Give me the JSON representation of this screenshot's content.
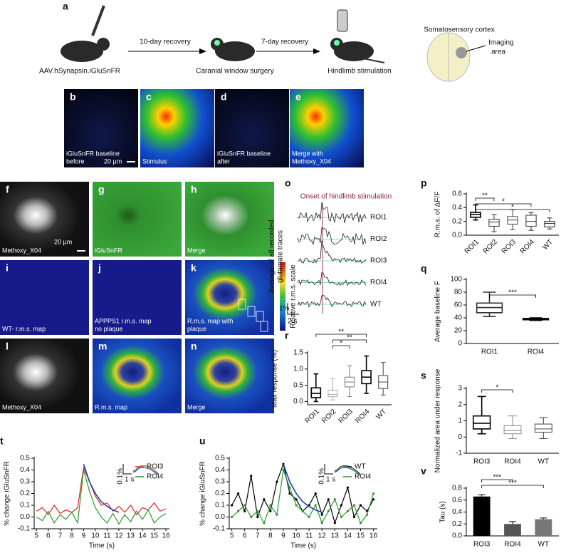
{
  "diagram": {
    "letter": "a",
    "steps": [
      "AAV.hSynapsin.iGluSnFR",
      "Caranial window surgery",
      "Hindlimb stimulation"
    ],
    "arrows": [
      "10-day recovery",
      "7-day recovery"
    ],
    "brain": {
      "title": "Somatosensory cortex",
      "label": [
        "Imaging",
        "area"
      ]
    }
  },
  "images": [
    {
      "letter": "b",
      "caption": [
        "iGluSnFR baseline",
        "before"
      ],
      "scale": "20 µm"
    },
    {
      "letter": "c",
      "caption": [
        "Stimulus"
      ]
    },
    {
      "letter": "d",
      "caption": [
        "iGluSnFR baseline",
        "after"
      ]
    },
    {
      "letter": "e",
      "caption": [
        "Merge with",
        "Methoxy_X04"
      ]
    },
    {
      "letter": "f",
      "caption": [
        "Methoxy_X04"
      ],
      "scale": "20 µm"
    },
    {
      "letter": "g",
      "caption": [
        "iGluSnFR"
      ]
    },
    {
      "letter": "h",
      "caption": [
        "Merge"
      ]
    },
    {
      "letter": "i",
      "caption": [
        "WT- r.m.s. map"
      ]
    },
    {
      "letter": "j",
      "caption": [
        "APPPS1 r.m.s. map",
        "no plaque"
      ]
    },
    {
      "letter": "k",
      "caption": [
        "R.m.s. map with",
        "plaque"
      ]
    },
    {
      "letter": "l",
      "caption": [
        "Methoxy_X04"
      ]
    },
    {
      "letter": "m",
      "caption": [
        "R.m.s. map"
      ]
    },
    {
      "letter": "n",
      "caption": [
        "Merge"
      ]
    }
  ],
  "colorbar_label": "Relative r.m.s. scale",
  "traces": {
    "letter": "o",
    "title": "Onset of hindlimb stimulation",
    "ylabel": [
      "Average of all recorded",
      "glutamate traces"
    ],
    "labels": [
      "ROI1",
      "ROI2",
      "ROI3",
      "ROI4",
      "WT"
    ],
    "scale": [
      "1%",
      "2 s"
    ]
  },
  "chart_data": [
    {
      "panel": "p",
      "type": "box",
      "ylabel": "R.m.s. of ΔF/F",
      "rotate_labels": true,
      "categories": [
        "ROI1",
        "ROI2",
        "ROI3",
        "ROI4",
        "WT"
      ],
      "colors": [
        "#000000",
        "#333333",
        "#444444",
        "#333333",
        "#222222"
      ],
      "stats": [
        {
          "min": 0.22,
          "q1": 0.26,
          "median": 0.3,
          "q3": 0.33,
          "max": 0.44
        },
        {
          "min": 0.05,
          "q1": 0.13,
          "median": 0.19,
          "q3": 0.23,
          "max": 0.3
        },
        {
          "min": 0.08,
          "q1": 0.16,
          "median": 0.22,
          "q3": 0.27,
          "max": 0.37
        },
        {
          "min": 0.07,
          "q1": 0.13,
          "median": 0.2,
          "q3": 0.29,
          "max": 0.33
        },
        {
          "min": 0.09,
          "q1": 0.12,
          "median": 0.17,
          "q3": 0.2,
          "max": 0.25
        }
      ],
      "ylim": [
        0,
        0.6
      ],
      "yticks": [
        {
          "value": 0,
          "label": "0.0"
        },
        {
          "value": 0.2,
          "label": "0.2"
        },
        {
          "value": 0.4,
          "label": "0.4"
        },
        {
          "value": 0.6,
          "label": "0.6"
        }
      ],
      "annotations": [
        {
          "text": "**",
          "between": [
            "ROI1",
            "ROI2"
          ]
        },
        {
          "text": "*",
          "between": [
            "ROI1",
            "ROI4"
          ]
        },
        {
          "text": "*",
          "between": [
            "ROI1",
            "WT"
          ]
        }
      ]
    },
    {
      "panel": "q",
      "type": "box",
      "ylabel": "Average baseline F",
      "rotate_labels": false,
      "categories": [
        "ROI1",
        "ROI4"
      ],
      "colors": [
        "#333333",
        "#000000"
      ],
      "stats": [
        {
          "min": 42,
          "q1": 48,
          "median": 56,
          "q3": 63,
          "max": 80
        },
        {
          "min": 36,
          "q1": 37,
          "median": 38,
          "q3": 39,
          "max": 40
        }
      ],
      "ylim": [
        0,
        100
      ],
      "yticks": [
        0,
        20,
        40,
        60,
        80,
        100
      ],
      "annotations": [
        {
          "text": "***",
          "between": [
            "ROI1",
            "ROI4"
          ]
        }
      ]
    },
    {
      "panel": "r",
      "type": "box",
      "ylabel": "Max response (%)",
      "rotate_labels": true,
      "categories": [
        "ROI1",
        "ROI2",
        "ROI3",
        "ROI4",
        "WT"
      ],
      "colors": [
        "#000000",
        "#aaaaaa",
        "#777777",
        "#000000",
        "#444444"
      ],
      "stats": [
        {
          "min": 0,
          "q1": 0.12,
          "median": 0.25,
          "q3": 0.42,
          "max": 0.85
        },
        {
          "min": 0.05,
          "q1": 0.15,
          "median": 0.22,
          "q3": 0.35,
          "max": 0.7
        },
        {
          "min": 0.15,
          "q1": 0.45,
          "median": 0.6,
          "q3": 0.75,
          "max": 1.1
        },
        {
          "min": 0.25,
          "q1": 0.55,
          "median": 0.75,
          "q3": 0.95,
          "max": 1.4
        },
        {
          "min": 0.2,
          "q1": 0.4,
          "median": 0.6,
          "q3": 0.8,
          "max": 1.2
        }
      ],
      "ylim": [
        -0.1,
        1.5
      ],
      "yticks": [
        {
          "value": 0,
          "label": "0.0"
        },
        {
          "value": 0.5,
          "label": "0.5"
        },
        {
          "value": 1,
          "label": "1.0"
        },
        {
          "value": 1.5,
          "label": "1.5"
        }
      ],
      "annotations": [
        {
          "text": "**",
          "between": [
            "ROI1",
            "ROI4"
          ]
        },
        {
          "text": "**",
          "between": [
            "ROI2",
            "ROI4"
          ]
        },
        {
          "text": "*",
          "between": [
            "ROI2",
            "ROI3"
          ]
        }
      ]
    },
    {
      "panel": "s",
      "type": "box",
      "ylabel": "Normalized area under response",
      "rotate_labels": false,
      "categories": [
        "ROI3",
        "ROI4",
        "WT"
      ],
      "colors": [
        "#000000",
        "#888888",
        "#444444"
      ],
      "stats": [
        {
          "min": 0.2,
          "q1": 0.5,
          "median": 0.85,
          "q3": 1.3,
          "max": 2.5
        },
        {
          "min": -0.1,
          "q1": 0.2,
          "median": 0.4,
          "q3": 0.7,
          "max": 1.3
        },
        {
          "min": -0.1,
          "q1": 0.3,
          "median": 0.5,
          "q3": 0.8,
          "max": 1.2
        }
      ],
      "ylim": [
        -1,
        3
      ],
      "yticks": [
        -1,
        0,
        1,
        2,
        3
      ],
      "annotations": [
        {
          "text": "*",
          "between": [
            "ROI3",
            "ROI4"
          ]
        }
      ]
    },
    {
      "panel": "v",
      "type": "bar",
      "ylabel": "Tau (s)",
      "rotate_labels": false,
      "categories": [
        "ROI3",
        "ROI4",
        "WT"
      ],
      "values": [
        0.66,
        0.2,
        0.28
      ],
      "errors": [
        0.03,
        0.04,
        0.02
      ],
      "colors": [
        "#000000",
        "#555555",
        "#777777"
      ],
      "ylim": [
        0,
        0.8
      ],
      "yticks": [
        {
          "value": 0,
          "label": "0.0"
        },
        {
          "value": 0.2,
          "label": "0.2"
        },
        {
          "value": 0.4,
          "label": "0.4"
        },
        {
          "value": 0.6,
          "label": "0.6"
        },
        {
          "value": 0.8,
          "label": "0.8"
        }
      ],
      "annotations": [
        {
          "text": "***",
          "between": [
            "ROI3",
            "ROI4"
          ]
        },
        {
          "text": "***",
          "between": [
            "ROI3",
            "WT"
          ]
        }
      ]
    },
    {
      "panel": "t",
      "type": "line",
      "xlabel": "Time (s)",
      "ylabel": "% change iGluSnFR",
      "legend": "upper right",
      "inset_scale": [
        "0.1%",
        "1 s"
      ],
      "x": [
        5,
        5.5,
        6,
        6.5,
        7,
        7.5,
        8,
        8.5,
        9,
        9.5,
        10,
        10.5,
        11,
        11.5,
        12,
        12.5,
        13,
        13.5,
        14,
        14.5,
        15,
        15.5,
        16
      ],
      "series": [
        {
          "name": "ROI3",
          "color": "#e8201c",
          "values": [
            0.05,
            0.08,
            0.02,
            0.1,
            0.03,
            0.06,
            0.04,
            0.08,
            0.42,
            0.3,
            0.18,
            0.1,
            0.12,
            0.05,
            0.09,
            0.04,
            0.1,
            0.02,
            0.08,
            0.06,
            0.12,
            0.05,
            0.07
          ]
        },
        {
          "name": "ROI4",
          "color": "#2a9a2a",
          "values": [
            0,
            -0.03,
            0.05,
            -0.05,
            0.02,
            -0.02,
            0.04,
            -0.05,
            0.4,
            0.22,
            0.08,
            0,
            -0.05,
            0.03,
            -0.06,
            0.02,
            -0.04,
            0.05,
            -0.02,
            0.06,
            -0.05,
            0,
            0.03
          ]
        },
        {
          "color": "#1f3fbf",
          "values": [
            null,
            null,
            null,
            null,
            null,
            null,
            null,
            null,
            0.45,
            0.3,
            0.2,
            0.13,
            0.09,
            0.06,
            0.04,
            null,
            null,
            null,
            null,
            null,
            null,
            null,
            null
          ]
        }
      ],
      "xlim": [
        4.8,
        16.3
      ],
      "xticks": [
        5,
        6,
        7,
        8,
        9,
        10,
        11,
        12,
        13,
        14,
        15,
        16
      ],
      "ylim": [
        -0.1,
        0.5
      ],
      "yticks": [
        {
          "value": -0.1,
          "label": "-0.1"
        },
        {
          "value": 0,
          "label": "0.0"
        },
        {
          "value": 0.1,
          "label": "0.1"
        },
        {
          "value": 0.2,
          "label": "0.2"
        },
        {
          "value": 0.3,
          "label": "0.3"
        },
        {
          "value": 0.4,
          "label": "0.4"
        },
        {
          "value": 0.5,
          "label": "0.5"
        }
      ]
    },
    {
      "panel": "u",
      "type": "line",
      "xlabel": "Time (s)",
      "ylabel": "% change iGluSnFR",
      "legend": "upper right",
      "inset_scale": [
        "0.1%",
        "1 s"
      ],
      "x": [
        5,
        5.5,
        6,
        6.5,
        7,
        7.5,
        8,
        8.5,
        9,
        9.5,
        10,
        10.5,
        11,
        11.5,
        12,
        12.5,
        13,
        13.5,
        14,
        14.5,
        15,
        15.5,
        16
      ],
      "series": [
        {
          "name": "WT",
          "color": "#000000",
          "values": [
            0.1,
            0.2,
            0.05,
            0.35,
            0,
            0.15,
            0.05,
            0.3,
            0.45,
            0.2,
            0.15,
            0.05,
            0.1,
            0.2,
            0.02,
            0.15,
            -0.05,
            0.1,
            0.25,
            0,
            0.1,
            0.05,
            0.15
          ]
        },
        {
          "name": "ROI4",
          "color": "#2a9a2a",
          "values": [
            0,
            0.05,
            0.1,
            0,
            0.05,
            -0.05,
            0.1,
            0.02,
            0.4,
            0.25,
            0.1,
            0.05,
            0,
            0.1,
            -0.05,
            0.05,
            0.15,
            0,
            0.05,
            0.1,
            -0.05,
            0.02,
            0.2
          ]
        },
        {
          "color": "#1f3fbf",
          "values": [
            null,
            null,
            null,
            null,
            null,
            null,
            null,
            null,
            0.45,
            0.3,
            0.2,
            0.13,
            0.09,
            0.06,
            0.04,
            null,
            null,
            null,
            null,
            null,
            null,
            null,
            null
          ]
        }
      ],
      "xlim": [
        4.8,
        16.3
      ],
      "xticks": [
        5,
        6,
        7,
        8,
        9,
        10,
        11,
        12,
        13,
        14,
        15,
        16
      ],
      "ylim": [
        -0.1,
        0.5
      ],
      "yticks": [
        {
          "value": -0.1,
          "label": "-0.1"
        },
        {
          "value": 0,
          "label": "0.0"
        },
        {
          "value": 0.1,
          "label": "0.1"
        },
        {
          "value": 0.2,
          "label": "0.2"
        },
        {
          "value": 0.3,
          "label": "0.3"
        },
        {
          "value": 0.4,
          "label": "0.4"
        },
        {
          "value": 0.5,
          "label": "0.5"
        }
      ]
    }
  ]
}
